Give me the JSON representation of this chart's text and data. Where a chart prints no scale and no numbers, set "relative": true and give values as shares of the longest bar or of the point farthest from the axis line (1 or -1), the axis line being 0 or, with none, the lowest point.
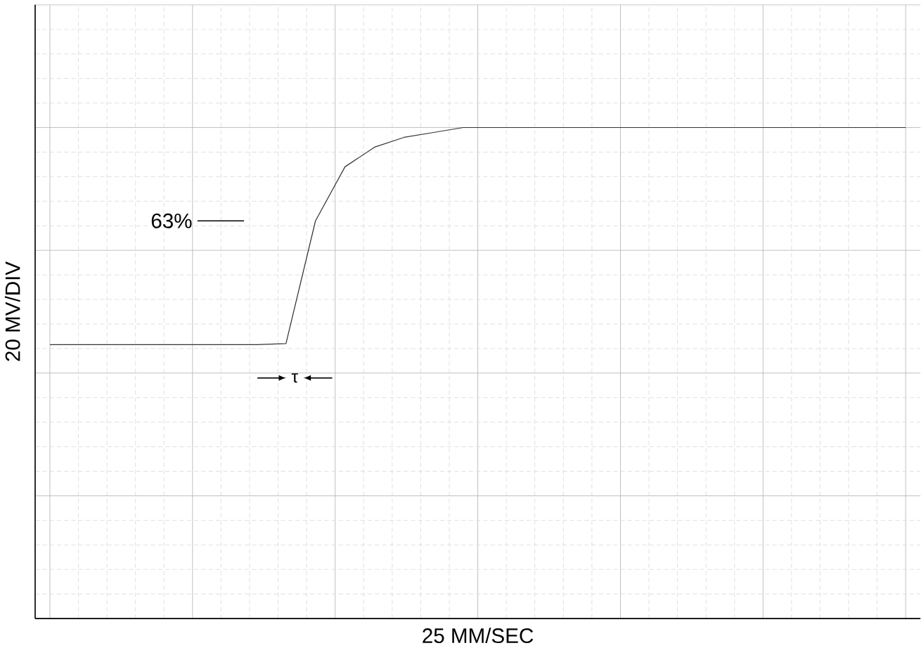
{
  "chart_data": {
    "type": "line",
    "relative": true,
    "xlabel": "25 MM/SEC",
    "ylabel": "20 MV/DIV",
    "grid": true,
    "color": "#333333",
    "categories": [
      null,
      null,
      null,
      null,
      null,
      null,
      null,
      null,
      null,
      null,
      null,
      null,
      null,
      null,
      null,
      null,
      null,
      null,
      null,
      null,
      null,
      null,
      null,
      null,
      null,
      null,
      null,
      null,
      null,
      null
    ],
    "values": [
      0.558,
      0.558,
      0.558,
      0.558,
      0.558,
      0.558,
      0.558,
      0.558,
      0.56,
      0.81,
      0.92,
      0.96,
      0.98,
      0.99,
      1,
      1,
      1,
      1,
      1,
      1,
      1,
      1,
      1,
      1,
      1,
      1,
      1,
      1,
      1,
      1
    ],
    "annotations": [
      "63%",
      "τ"
    ]
  }
}
